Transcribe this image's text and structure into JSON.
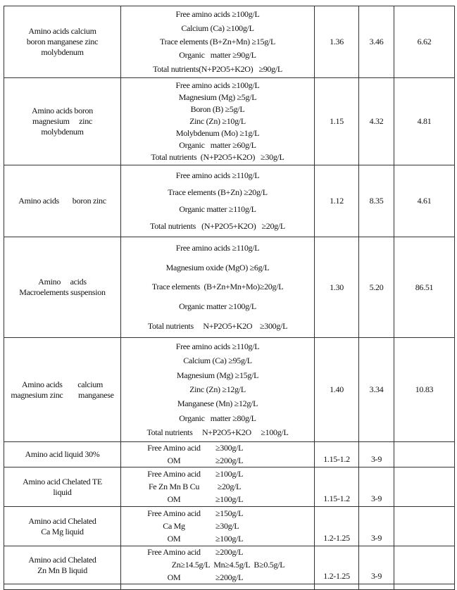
{
  "rows": [
    {
      "name": [
        "Amino acids calcium",
        "boron manganese zinc",
        "molybdenum"
      ],
      "composition": [
        "Free amino acids ≥100g/L",
        "Calcium (Ca) ≥100g/L",
        "Trace elements (B+Zn+Mn) ≥15g/L",
        "Organic   matter ≥90g/L",
        "Total nutrients(N+P2O5+K2O)   ≥90g/L"
      ],
      "v1": "1.36",
      "v2": "3.46",
      "v3": "6.62"
    },
    {
      "name": [
        "Amino acids boron",
        "magnesium     zinc",
        "molybdenum"
      ],
      "composition": [
        "Free amino acids ≥100g/L",
        "Magnesium (Mg) ≥5g/L",
        "Boron (B) ≥5g/L",
        "Zinc (Zn) ≥10g/L",
        "Molybdenum (Mo) ≥1g/L",
        "Organic   matter ≥60g/L",
        "Total nutrients  (N+P2O5+K2O)   ≥30g/L"
      ],
      "v1": "1.15",
      "v2": "4.32",
      "v3": "4.81"
    },
    {
      "name": [
        "Amino acids       boron zinc"
      ],
      "composition": [
        "Free amino acids ≥110g/L",
        "Trace elements (B+Zn) ≥20g/L",
        "Organic matter ≥110g/L",
        "Total nutrients   (N+P2O5+K2O)   ≥20g/L"
      ],
      "v1": "1.12",
      "v2": "8.35",
      "v3": "4.61"
    },
    {
      "name": [
        "Amino     acids",
        "Macroelements suspension"
      ],
      "composition": [
        "Free amino acids ≥110g/L",
        "Magnesium oxide (MgO) ≥6g/L",
        "Trace elements  (B+Zn+Mn+Mo)≥20g/L",
        "Organic matter ≥100g/L",
        "Total nutrients     N+P2O5+K2O    ≥300g/L"
      ],
      "v1": "1.30",
      "v2": "5.20",
      "v3": "86.51"
    },
    {
      "name": [
        "Amino acids        calcium",
        "magnesium zinc        manganese"
      ],
      "composition": [
        "Free amino acids ≥110g/L",
        "Calcium (Ca) ≥95g/L",
        "Magnesium (Mg) ≥15g/L",
        "Zinc (Zn) ≥12g/L",
        "Manganese (Mn) ≥12g/L",
        "Organic   matter ≥80g/L",
        "Total nutrients     N+P2O5+K2O     ≥100g/L"
      ],
      "v1": "1.40",
      "v2": "3.34",
      "v3": "10.83"
    }
  ],
  "simple_rows": [
    {
      "name": [
        "Amino acid liquid 30%"
      ],
      "composition": [
        [
          "Free Amino acid",
          "≥300g/L"
        ],
        [
          "OM",
          "≥200g/L"
        ]
      ],
      "v1": "1.15-1.2",
      "v2": "3-9",
      "v3": ""
    },
    {
      "name": [
        "Amino acid Chelated TE",
        "liquid"
      ],
      "composition": [
        [
          "Free Amino acid",
          "≥100g/L"
        ],
        [
          "Fe Zn Mn B Cu",
          " ≥20g/L"
        ],
        [
          "OM",
          "≥100g/L"
        ]
      ],
      "v1": "1.15-1.2",
      "v2": "3-9",
      "v3": ""
    },
    {
      "name": [
        "Amino acid Chelated",
        "Ca Mg liquid"
      ],
      "composition": [
        [
          "Free Amino acid",
          "≥150g/L"
        ],
        [
          "Ca Mg",
          "≥30g/L"
        ],
        [
          "OM",
          "≥100g/L"
        ]
      ],
      "v1": "1.2-1.25",
      "v2": "3-9",
      "v3": ""
    },
    {
      "name": [
        "Amino acid Chelated",
        "Zn Mn B liquid"
      ],
      "composition": [
        [
          "Free Amino acid",
          "≥200g/L"
        ],
        [
          "Zn≥14.5g/L  Mn≥4.5g/L  B≥0.5g/L"
        ],
        [
          "OM",
          "≥200g/L"
        ]
      ],
      "v1": "1.2-1.25",
      "v2": "3-9",
      "v3": ""
    }
  ]
}
